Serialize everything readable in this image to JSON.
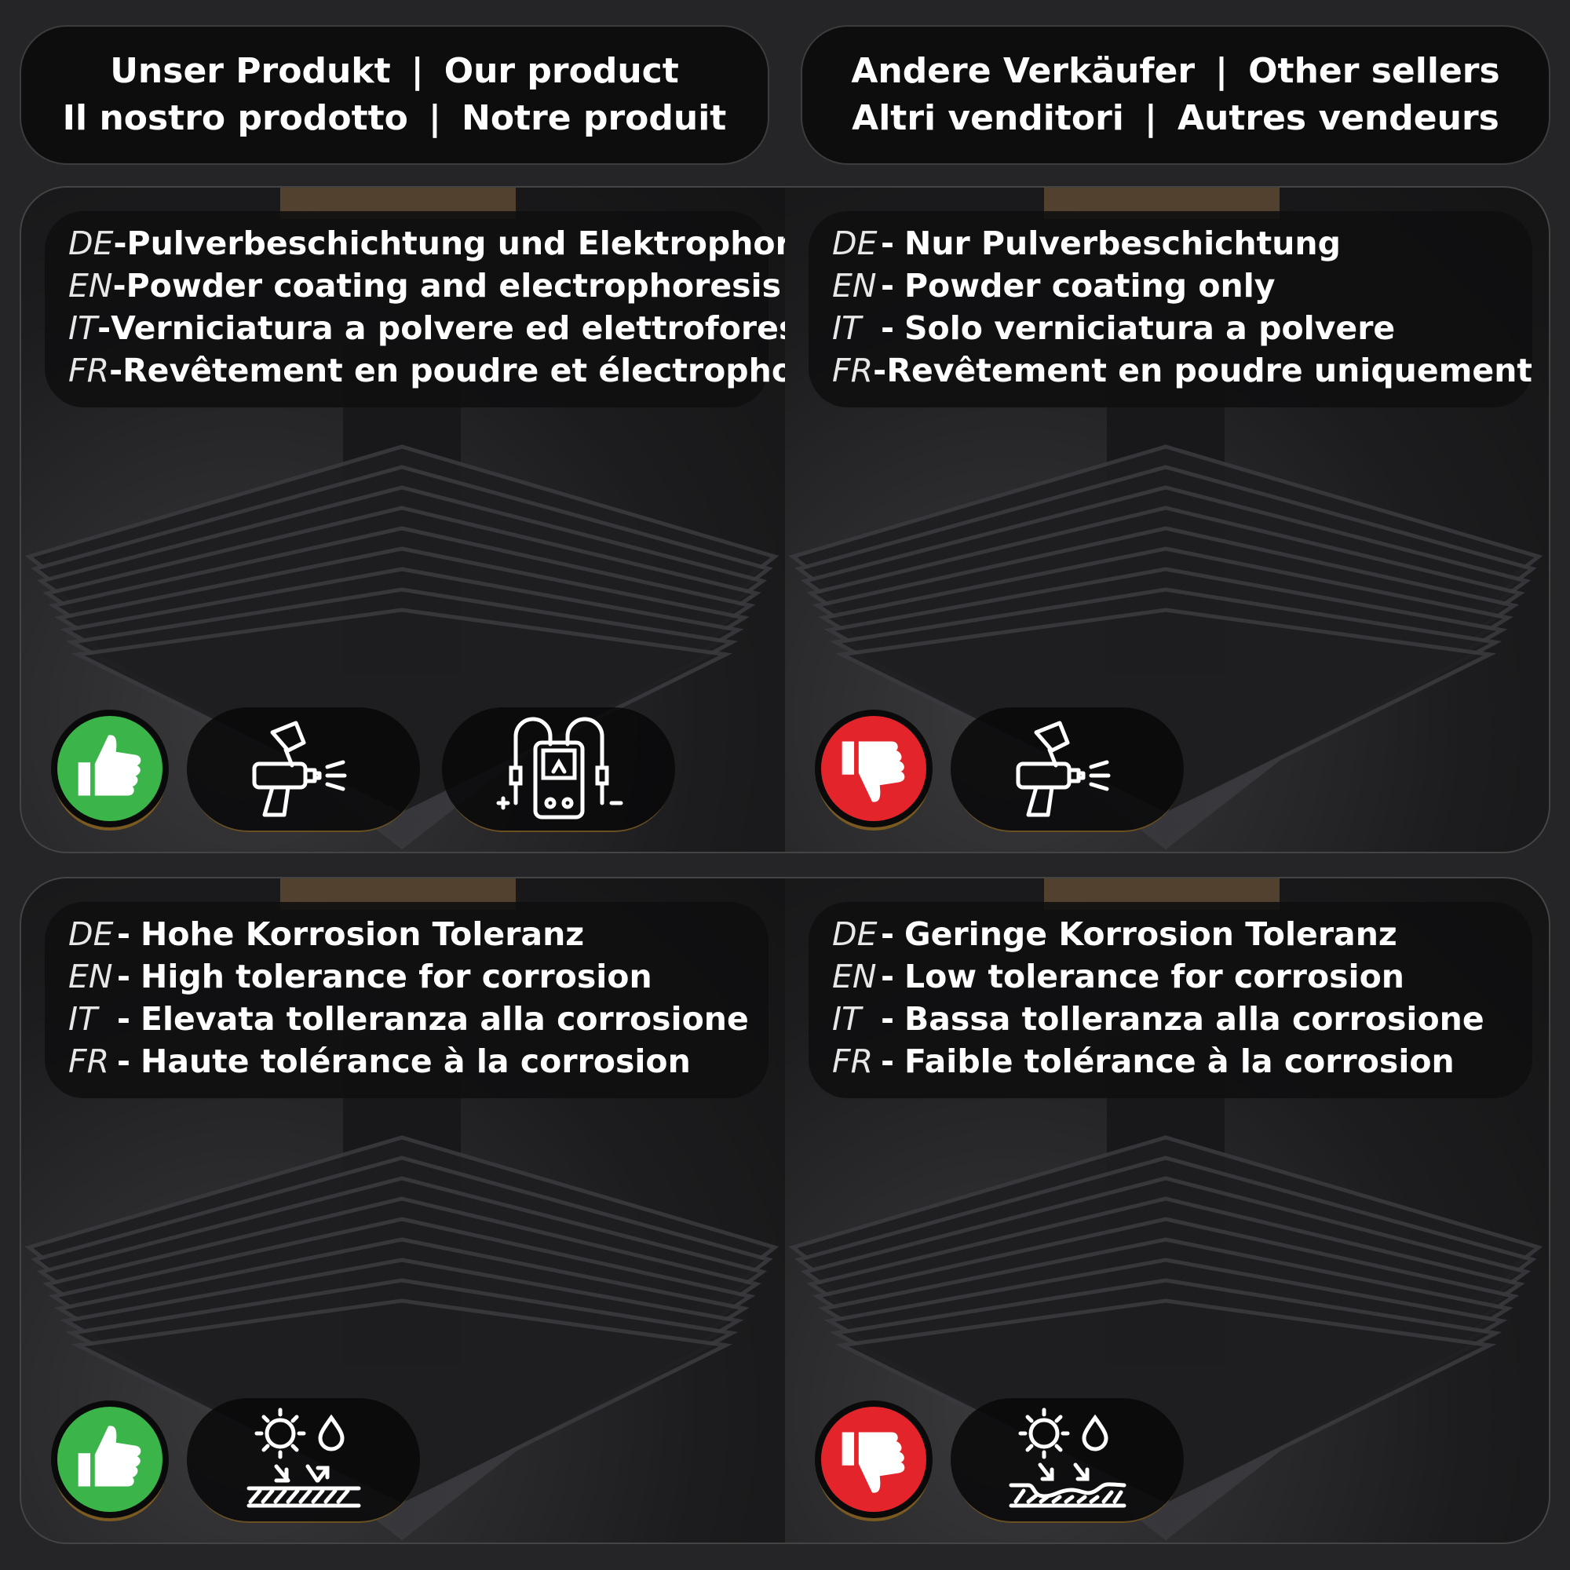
{
  "header_left": {
    "row1": [
      "Unser Produkt",
      "|",
      "Our product"
    ],
    "row2": [
      "Il nostro prodotto",
      "|",
      "Notre produit"
    ]
  },
  "header_right": {
    "row1": [
      "Andere Verkäufer",
      "|",
      "Other sellers"
    ],
    "row2": [
      "Altri venditori",
      "|",
      "Autres vendeurs"
    ]
  },
  "colors": {
    "good": "#3bb54a",
    "bad": "#e3242b"
  },
  "panels": [
    {
      "verdict": "thumbs-up",
      "icons": [
        "spray-gun-icon",
        "multimeter-icon"
      ],
      "lines": [
        {
          "code": "DE",
          "text": "Pulverbeschichtung und Elektrophorese"
        },
        {
          "code": "EN",
          "text": "Powder coating and electrophoresis"
        },
        {
          "code": "IT",
          "text": "Verniciatura a polvere ed elettroforesi"
        },
        {
          "code": "FR",
          "text": "Revêtement en poudre et électrophorèse"
        }
      ]
    },
    {
      "verdict": "thumbs-down",
      "icons": [
        "spray-gun-icon"
      ],
      "lines": [
        {
          "code": "DE",
          "text": "Nur Pulverbeschichtung"
        },
        {
          "code": "EN",
          "text": "Powder coating only"
        },
        {
          "code": "IT",
          "text": "Solo verniciatura a polvere"
        },
        {
          "code": "FR",
          "text": "Revêtement en poudre uniquement"
        }
      ]
    },
    {
      "verdict": "thumbs-up",
      "icons": [
        "weather-resistant-surface-icon"
      ],
      "lines": [
        {
          "code": "DE",
          "text": "Hohe Korrosion Toleranz"
        },
        {
          "code": "EN",
          "text": "High tolerance for corrosion"
        },
        {
          "code": "IT",
          "text": "Elevata tolleranza alla corrosione"
        },
        {
          "code": "FR",
          "text": "Haute tolérance à la corrosion"
        }
      ]
    },
    {
      "verdict": "thumbs-down",
      "icons": [
        "weather-corroded-surface-icon"
      ],
      "lines": [
        {
          "code": "DE",
          "text": "Geringe Korrosion Toleranz"
        },
        {
          "code": "EN",
          "text": "Low tolerance for corrosion"
        },
        {
          "code": "IT",
          "text": "Bassa tolleranza alla corrosione"
        },
        {
          "code": "FR",
          "text": "Faible tolérance à la corrosion"
        }
      ]
    }
  ]
}
